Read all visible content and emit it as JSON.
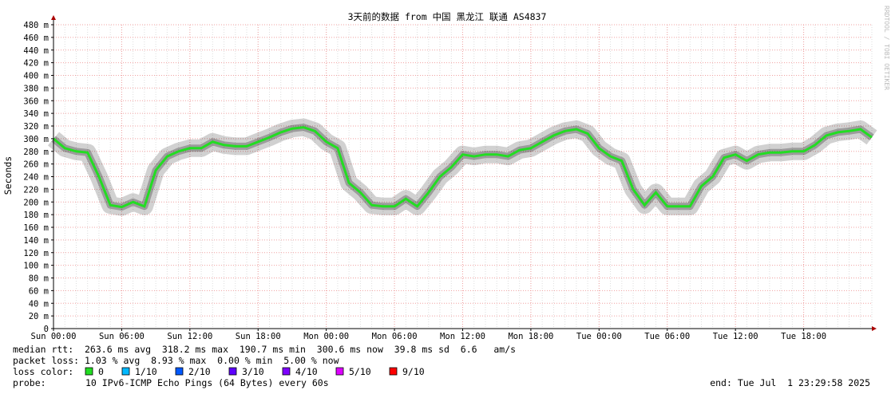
{
  "chart_data": {
    "type": "line",
    "title": "3天前的数据 from 中国 黑龙江 联通 AS4837",
    "y_label": "Seconds",
    "side_note": "RRDTOOL / TOBI OETIKER",
    "ylim": [
      0,
      0.48
    ],
    "yticks": [
      0,
      {
        "value": 0.02,
        "label": "20 m"
      },
      {
        "value": 0.04,
        "label": "40 m"
      },
      {
        "value": 0.06,
        "label": "60 m"
      },
      {
        "value": 0.08,
        "label": "80 m"
      },
      {
        "value": 0.1,
        "label": "100 m"
      },
      {
        "value": 0.12,
        "label": "120 m"
      },
      {
        "value": 0.14,
        "label": "140 m"
      },
      {
        "value": 0.16,
        "label": "160 m"
      },
      {
        "value": 0.18,
        "label": "180 m"
      },
      {
        "value": 0.2,
        "label": "200 m"
      },
      {
        "value": 0.22,
        "label": "220 m"
      },
      {
        "value": 0.24,
        "label": "240 m"
      },
      {
        "value": 0.26,
        "label": "260 m"
      },
      {
        "value": 0.28,
        "label": "280 m"
      },
      {
        "value": 0.3,
        "label": "300 m"
      },
      {
        "value": 0.32,
        "label": "320 m"
      },
      {
        "value": 0.34,
        "label": "340 m"
      },
      {
        "value": 0.36,
        "label": "360 m"
      },
      {
        "value": 0.38,
        "label": "380 m"
      },
      {
        "value": 0.4,
        "label": "400 m"
      },
      {
        "value": 0.42,
        "label": "420 m"
      },
      {
        "value": 0.44,
        "label": "440 m"
      },
      {
        "value": 0.46,
        "label": "460 m"
      },
      {
        "value": 0.48,
        "label": "480 m"
      }
    ],
    "xlim": [
      0,
      72
    ],
    "xticks": [
      {
        "value": 0,
        "label": "Sun 00:00"
      },
      {
        "value": 6,
        "label": "Sun 06:00"
      },
      {
        "value": 12,
        "label": "Sun 12:00"
      },
      {
        "value": 18,
        "label": "Sun 18:00"
      },
      {
        "value": 24,
        "label": "Mon 00:00"
      },
      {
        "value": 30,
        "label": "Mon 06:00"
      },
      {
        "value": 36,
        "label": "Mon 12:00"
      },
      {
        "value": 42,
        "label": "Mon 18:00"
      },
      {
        "value": 48,
        "label": "Tue 00:00"
      },
      {
        "value": 54,
        "label": "Tue 06:00"
      },
      {
        "value": 60,
        "label": "Tue 12:00"
      },
      {
        "value": 66,
        "label": "Tue 18:00"
      }
    ],
    "grid": true,
    "x": [
      0,
      1,
      2,
      3,
      4,
      5,
      6,
      7,
      8,
      9,
      10,
      11,
      12,
      13,
      14,
      15,
      16,
      17,
      18,
      19,
      20,
      21,
      22,
      23,
      24,
      25,
      26,
      27,
      28,
      29,
      30,
      31,
      32,
      33,
      34,
      35,
      36,
      37,
      38,
      39,
      40,
      41,
      42,
      43,
      44,
      45,
      46,
      47,
      48,
      49,
      50,
      51,
      52,
      53,
      54,
      55,
      56,
      57,
      58,
      59,
      60,
      61,
      62,
      63,
      64,
      65,
      66,
      67,
      68,
      69,
      70,
      71,
      72
    ],
    "series": [
      {
        "name": "median rtt",
        "color": "#22dd22",
        "values": [
          0.3,
          0.285,
          0.28,
          0.278,
          0.24,
          0.195,
          0.192,
          0.2,
          0.193,
          0.25,
          0.272,
          0.28,
          0.285,
          0.285,
          0.295,
          0.29,
          0.288,
          0.288,
          0.295,
          0.302,
          0.31,
          0.316,
          0.318,
          0.312,
          0.295,
          0.285,
          0.23,
          0.215,
          0.195,
          0.193,
          0.193,
          0.205,
          0.193,
          0.215,
          0.24,
          0.255,
          0.275,
          0.272,
          0.275,
          0.275,
          0.272,
          0.282,
          0.285,
          0.295,
          0.305,
          0.312,
          0.315,
          0.308,
          0.285,
          0.272,
          0.265,
          0.22,
          0.195,
          0.215,
          0.193,
          0.193,
          0.193,
          0.225,
          0.24,
          0.27,
          0.275,
          0.265,
          0.275,
          0.278,
          0.278,
          0.28,
          0.28,
          0.29,
          0.305,
          0.31,
          0.312,
          0.315,
          0.302
        ]
      }
    ],
    "stats": [
      "median rtt:  263.6 ms avg  318.2 ms max  190.7 ms min  300.6 ms now  39.8 ms sd  6.6   am/s",
      "packet loss: 1.03 % avg  8.93 % max  0.00 % min  5.00 % now"
    ],
    "loss_label": "loss color:",
    "loss_colors": [
      {
        "name": "0",
        "color": "#22dd22"
      },
      {
        "name": "1/10",
        "color": "#00b8ff"
      },
      {
        "name": "2/10",
        "color": "#0059ff"
      },
      {
        "name": "3/10",
        "color": "#5e00ff"
      },
      {
        "name": "4/10",
        "color": "#7e00ff"
      },
      {
        "name": "5/10",
        "color": "#dd00ff"
      },
      {
        "name": "9/10",
        "color": "#ff0000"
      }
    ],
    "probe_label": "probe:",
    "probe": "10 IPv6-ICMP Echo Pings (64 Bytes) every 60s",
    "end": "end: Tue Jul  1 23:29:58 2025"
  }
}
